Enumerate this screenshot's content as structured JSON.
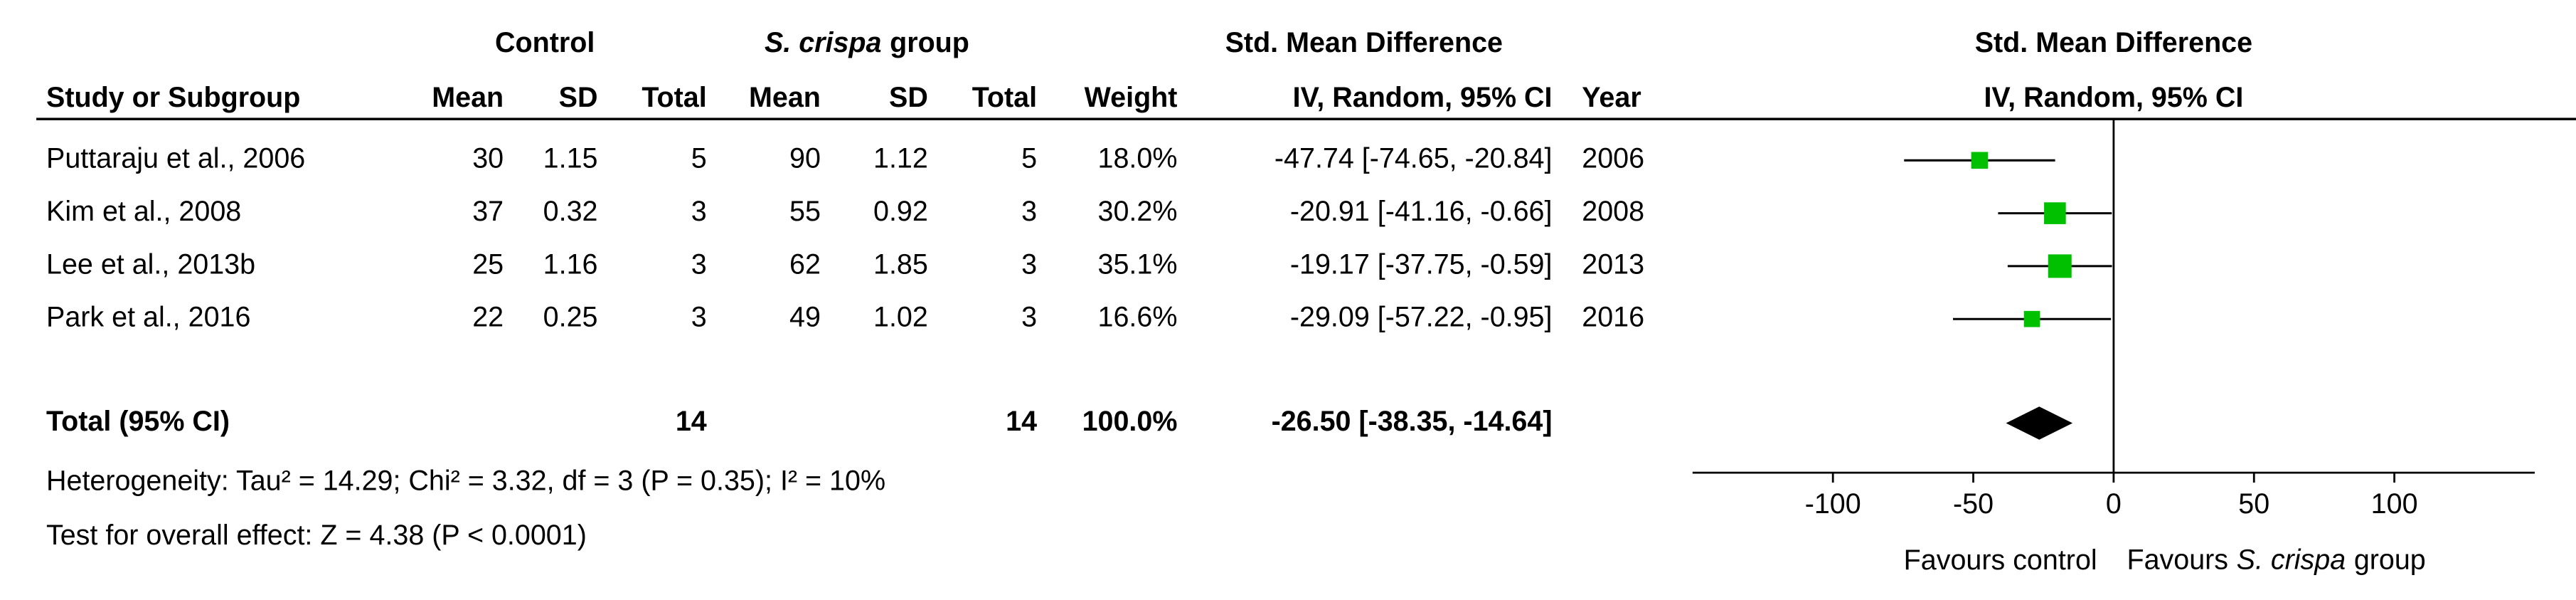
{
  "chart_data": {
    "type": "forest",
    "group_headers": {
      "control": "Control",
      "treatment": {
        "italic": "S. crispa",
        "text": "group"
      },
      "effect": "Std. Mean Difference"
    },
    "columns": [
      "Study or Subgroup",
      "Mean",
      "SD",
      "Total",
      "Mean",
      "SD",
      "Total",
      "Weight",
      "IV, Random, 95% CI",
      "Year"
    ],
    "plot_title": "Std. Mean Difference",
    "plot_subtitle": "IV, Random, 95% CI",
    "studies": [
      "Puttaraju et al., 2006",
      "Kim et al., 2008",
      "Lee et al., 2013b",
      "Park et al., 2016"
    ],
    "control_mean": [
      30,
      37,
      25,
      22
    ],
    "control_sd": [
      1.15,
      0.32,
      1.16,
      0.25
    ],
    "control_total": [
      5,
      3,
      3,
      3
    ],
    "treatment_mean": [
      90,
      55,
      62,
      49
    ],
    "treatment_sd": [
      1.12,
      0.92,
      1.85,
      1.02
    ],
    "treatment_total": [
      5,
      3,
      3,
      3
    ],
    "weights": [
      18.0,
      30.2,
      35.1,
      16.6
    ],
    "weight_labels": [
      "18.0%",
      "30.2%",
      "35.1%",
      "16.6%"
    ],
    "values": [
      -47.74,
      -20.91,
      -19.17,
      -29.09
    ],
    "lower": [
      -74.65,
      -41.16,
      -37.75,
      -57.22
    ],
    "upper": [
      -20.84,
      -0.66,
      -0.59,
      -0.95
    ],
    "value_labels": [
      "-47.74 [-74.65, -20.84]",
      "-20.91 [-41.16, -0.66]",
      "-19.17 [-37.75, -0.59]",
      "-29.09 [-57.22, -0.95]"
    ],
    "years": [
      2006,
      2008,
      2013,
      2016
    ],
    "total": {
      "label": "Total (95% CI)",
      "control_total": 14,
      "treatment_total": 14,
      "weight_label": "100.0%",
      "value": -26.5,
      "lower": -38.35,
      "upper": -14.64,
      "value_label": "-26.50 [-38.35, -14.64]"
    },
    "heterogeneity": "Heterogeneity: Tau² = 14.29; Chi² = 3.32, df = 3 (P = 0.35); I² = 10%",
    "overall_effect": "Test for overall effect: Z = 4.38 (P < 0.0001)",
    "xlim": [
      -150,
      150
    ],
    "xticks": [
      -100,
      -50,
      0,
      50,
      100
    ],
    "favours_left": "Favours control",
    "favours_right": {
      "text": "Favours",
      "italic": "S. crispa",
      "suffix": "group"
    },
    "point_color": "#00c000",
    "diamond_color": "#000000"
  }
}
